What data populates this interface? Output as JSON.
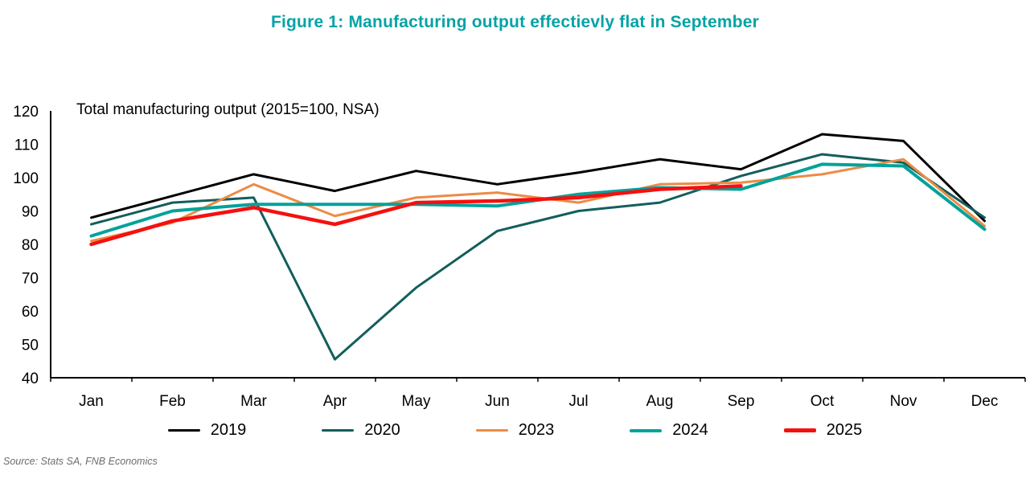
{
  "figure": {
    "title": "Figure 1: Manufacturing output effectievly flat in September",
    "title_color": "#04a3a6",
    "inner_label": "Total manufacturing output (2015=100, NSA)",
    "source": "Source: Stats SA, FNB Economics"
  },
  "chart_data": {
    "type": "line",
    "title": "Figure 1: Manufacturing output effectievly flat in September",
    "subtitle": "Total manufacturing output (2015=100, NSA)",
    "categories": [
      "Jan",
      "Feb",
      "Mar",
      "Apr",
      "May",
      "Jun",
      "Jul",
      "Aug",
      "Sep",
      "Oct",
      "Nov",
      "Dec"
    ],
    "ylim": [
      40,
      120
    ],
    "ytick_step": 10,
    "grid": false,
    "legend_position": "bottom",
    "axis_color": "#000000",
    "series": [
      {
        "name": "2019",
        "color": "#000000",
        "width": 3,
        "values": [
          88,
          94.5,
          101,
          96,
          102,
          98,
          101.5,
          105.5,
          102.5,
          113,
          111,
          87
        ]
      },
      {
        "name": "2020",
        "color": "#135e5c",
        "width": 3,
        "values": [
          86,
          92.5,
          94,
          45.5,
          67,
          84,
          90,
          92.5,
          100.5,
          107,
          104.5,
          88
        ]
      },
      {
        "name": "2023",
        "color": "#ec8b45",
        "width": 3,
        "values": [
          81,
          86.5,
          98,
          88.5,
          94,
          95.5,
          92.5,
          98,
          98.5,
          101,
          105.5,
          85.5
        ]
      },
      {
        "name": "2024",
        "color": "#00a29b",
        "width": 4,
        "values": [
          82.5,
          90,
          92,
          92,
          92,
          91.5,
          95,
          97,
          96.5,
          104,
          103.5,
          84.5
        ]
      },
      {
        "name": "2025",
        "color": "#f5100f",
        "width": 4.5,
        "values": [
          80,
          87,
          91,
          86,
          92.5,
          93,
          94,
          96.5,
          97.5
        ]
      }
    ]
  }
}
